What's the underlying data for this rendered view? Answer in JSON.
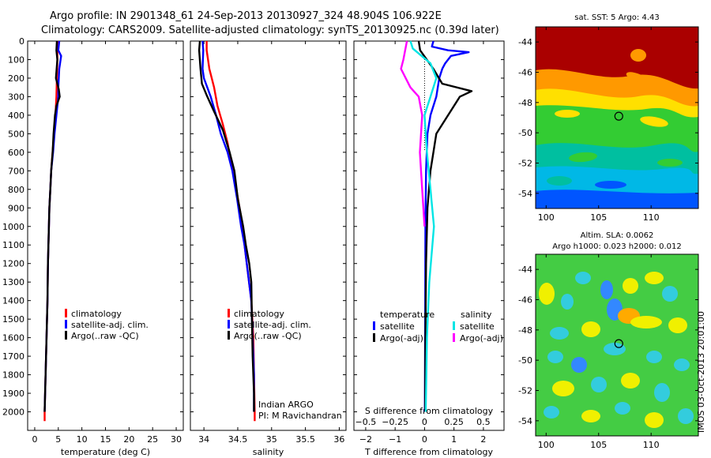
{
  "title_line1": "Argo profile: IN 2901348_61 24-Sep-2013 20130927_324 48.904S 106.922E",
  "title_line2": "Climatology: CARS2009. Satellite-adjusted climatology: synTS_20130925.nc (0.39d later)",
  "watermark": "IMOS 03-Oct-2013 20:01:00",
  "chart_data": [
    {
      "type": "line",
      "xlabel": "temperature (deg C)",
      "ylim": [
        2100,
        0
      ],
      "xlim": [
        -1.5,
        31.5
      ],
      "xticks": [
        0,
        5,
        10,
        15,
        20,
        25,
        30
      ],
      "xtick_labels": [
        "0",
        "5",
        "10",
        "15",
        "20",
        "25",
        "30"
      ],
      "yticks": [
        0,
        100,
        200,
        300,
        400,
        500,
        600,
        700,
        800,
        900,
        1000,
        1100,
        1200,
        1300,
        1400,
        1500,
        1600,
        1700,
        1800,
        1900,
        2000
      ],
      "ytick_labels": [
        "0",
        "100",
        "200",
        "300",
        "400",
        "500",
        "600",
        "700",
        "800",
        "900",
        "1000",
        "1100",
        "1200",
        "1300",
        "1400",
        "1500",
        "1600",
        "1700",
        "1800",
        "1900",
        "2000"
      ],
      "legend": [
        "climatology",
        "satellite-adj. clim.",
        "Argo(..raw -QC)"
      ],
      "series": [
        {
          "name": "climatology",
          "color": "#ff0000",
          "points": [
            [
              4.8,
              0
            ],
            [
              4.8,
              100
            ],
            [
              4.7,
              200
            ],
            [
              4.6,
              300
            ],
            [
              4.4,
              400
            ],
            [
              4.1,
              500
            ],
            [
              3.8,
              600
            ],
            [
              3.5,
              700
            ],
            [
              3.3,
              800
            ],
            [
              3.1,
              900
            ],
            [
              3.0,
              1000
            ],
            [
              2.8,
              1200
            ],
            [
              2.7,
              1400
            ],
            [
              2.5,
              1600
            ],
            [
              2.3,
              1800
            ],
            [
              2.2,
              1900
            ],
            [
              2.1,
              2000
            ],
            [
              2.1,
              2050
            ]
          ]
        },
        {
          "name": "satellite-adj. clim.",
          "color": "#0000ff",
          "points": [
            [
              5.2,
              0
            ],
            [
              5.0,
              50
            ],
            [
              5.6,
              80
            ],
            [
              5.2,
              150
            ],
            [
              5.0,
              250
            ],
            [
              5.0,
              300
            ],
            [
              4.6,
              400
            ],
            [
              4.2,
              500
            ],
            [
              3.9,
              600
            ],
            [
              3.5,
              700
            ],
            [
              3.3,
              800
            ],
            [
              3.1,
              900
            ],
            [
              3.0,
              1000
            ],
            [
              2.8,
              1200
            ],
            [
              2.7,
              1400
            ],
            [
              2.5,
              1600
            ],
            [
              2.3,
              1800
            ],
            [
              2.2,
              1900
            ],
            [
              2.1,
              2000
            ]
          ]
        },
        {
          "name": "Argo(..raw -QC)",
          "color": "#000000",
          "points": [
            [
              4.7,
              0
            ],
            [
              4.6,
              50
            ],
            [
              4.8,
              100
            ],
            [
              4.5,
              200
            ],
            [
              5.1,
              260
            ],
            [
              5.3,
              300
            ],
            [
              4.6,
              350
            ],
            [
              4.3,
              400
            ],
            [
              4.0,
              500
            ],
            [
              3.8,
              600
            ],
            [
              3.5,
              700
            ],
            [
              3.3,
              800
            ],
            [
              3.1,
              900
            ],
            [
              3.0,
              1000
            ],
            [
              2.8,
              1200
            ],
            [
              2.7,
              1400
            ],
            [
              2.5,
              1600
            ],
            [
              2.3,
              1800
            ],
            [
              2.2,
              1900
            ],
            [
              2.1,
              2000
            ]
          ]
        }
      ]
    },
    {
      "type": "line",
      "xlabel": "salinity",
      "ylim": [
        2100,
        0
      ],
      "xlim": [
        33.8,
        36.1
      ],
      "xticks": [
        34,
        34.5,
        35,
        35.5,
        36
      ],
      "xtick_labels": [
        "34",
        "34.5",
        "35",
        "35.5",
        "36"
      ],
      "legend": [
        "climatology",
        "satellite-adj. clim.",
        "Argo(..raw -QC)"
      ],
      "annotation_lines": [
        "Indian ARGO",
        "PI: M Ravichandran"
      ],
      "series": [
        {
          "name": "climatology",
          "color": "#ff0000",
          "points": [
            [
              34.04,
              0
            ],
            [
              34.04,
              50
            ],
            [
              34.08,
              150
            ],
            [
              34.15,
              250
            ],
            [
              34.2,
              350
            ],
            [
              34.28,
              450
            ],
            [
              34.35,
              550
            ],
            [
              34.4,
              650
            ],
            [
              34.48,
              800
            ],
            [
              34.55,
              950
            ],
            [
              34.6,
              1100
            ],
            [
              34.65,
              1250
            ],
            [
              34.7,
              1400
            ],
            [
              34.73,
              1600
            ],
            [
              34.74,
              1800
            ],
            [
              34.75,
              2000
            ],
            [
              34.75,
              2050
            ]
          ]
        },
        {
          "name": "satellite-adj. clim.",
          "color": "#0000ff",
          "points": [
            [
              33.98,
              0
            ],
            [
              33.99,
              50
            ],
            [
              33.98,
              150
            ],
            [
              34.0,
              200
            ],
            [
              34.1,
              300
            ],
            [
              34.18,
              400
            ],
            [
              34.25,
              500
            ],
            [
              34.35,
              600
            ],
            [
              34.42,
              700
            ],
            [
              34.49,
              850
            ],
            [
              34.55,
              1000
            ],
            [
              34.6,
              1100
            ],
            [
              34.65,
              1250
            ],
            [
              34.7,
              1400
            ],
            [
              34.72,
              1600
            ],
            [
              34.74,
              1800
            ],
            [
              34.74,
              2000
            ]
          ]
        },
        {
          "name": "Argo(..raw -QC)",
          "color": "#000000",
          "points": [
            [
              33.94,
              0
            ],
            [
              33.93,
              50
            ],
            [
              33.95,
              150
            ],
            [
              33.97,
              230
            ],
            [
              34.05,
              300
            ],
            [
              34.15,
              380
            ],
            [
              34.28,
              480
            ],
            [
              34.38,
              600
            ],
            [
              34.45,
              700
            ],
            [
              34.5,
              850
            ],
            [
              34.58,
              1000
            ],
            [
              34.62,
              1100
            ],
            [
              34.67,
              1200
            ],
            [
              34.7,
              1300
            ],
            [
              34.71,
              1500
            ],
            [
              34.72,
              1700
            ],
            [
              34.74,
              1900
            ],
            [
              34.74,
              2000
            ]
          ]
        }
      ]
    },
    {
      "type": "line",
      "xlabel": "T difference from climatology",
      "s_axis_label": "S difference from climatology",
      "ylim": [
        2100,
        0
      ],
      "xlim": [
        -2.4,
        2.7
      ],
      "xticks": [
        -2,
        -1,
        0,
        1,
        2
      ],
      "xtick_labels": [
        "−2",
        "−1",
        "0",
        "1",
        "2"
      ],
      "s_ticks": [
        -0.5,
        -0.25,
        0,
        0.25,
        0.5
      ],
      "s_tick_labels": [
        "−0.5",
        "−0.25",
        "0",
        "0.25",
        "0.5"
      ],
      "legend_temperature_title": "temperature",
      "legend_salinity_title": "salinity",
      "legend_temperature": [
        "satellite",
        "Argo(-adj)"
      ],
      "legend_salinity": [
        "satellite",
        "Argo(-adj)"
      ],
      "series": [
        {
          "name": "satellite",
          "group": "temperature",
          "color": "#0000ff",
          "points": [
            [
              0.3,
              0
            ],
            [
              0.25,
              30
            ],
            [
              0.8,
              50
            ],
            [
              1.5,
              60
            ],
            [
              0.9,
              80
            ],
            [
              0.7,
              120
            ],
            [
              0.6,
              150
            ],
            [
              0.5,
              200
            ],
            [
              0.4,
              300
            ],
            [
              0.2,
              400
            ],
            [
              0.1,
              500
            ],
            [
              0.05,
              700
            ],
            [
              0.03,
              1000
            ],
            [
              0.02,
              1500
            ],
            [
              0.01,
              2000
            ]
          ]
        },
        {
          "name": "Argo(-adj)",
          "group": "temperature",
          "color": "#000000",
          "points": [
            [
              -0.2,
              0
            ],
            [
              -0.15,
              50
            ],
            [
              0.3,
              150
            ],
            [
              0.6,
              230
            ],
            [
              1.6,
              270
            ],
            [
              1.2,
              300
            ],
            [
              0.8,
              400
            ],
            [
              0.4,
              500
            ],
            [
              0.3,
              600
            ],
            [
              0.2,
              700
            ],
            [
              0.1,
              900
            ],
            [
              0.05,
              1200
            ],
            [
              0.03,
              1600
            ],
            [
              0.02,
              2000
            ]
          ]
        },
        {
          "name": "satellite",
          "group": "salinity",
          "color": "#00e5e5",
          "points": [
            [
              -0.12,
              0
            ],
            [
              -0.1,
              40
            ],
            [
              0.05,
              120
            ],
            [
              0.1,
              200
            ],
            [
              0.05,
              300
            ],
            [
              0.0,
              400
            ],
            [
              0.02,
              600
            ],
            [
              0.05,
              800
            ],
            [
              0.08,
              1000
            ],
            [
              0.04,
              1300
            ],
            [
              0.02,
              1600
            ],
            [
              0.01,
              2000
            ]
          ]
        },
        {
          "name": "Argo(-adj)",
          "group": "salinity",
          "color": "#ff00ff",
          "points": [
            [
              -0.15,
              0
            ],
            [
              -0.18,
              100
            ],
            [
              -0.2,
              150
            ],
            [
              -0.12,
              250
            ],
            [
              -0.05,
              300
            ],
            [
              -0.02,
              400
            ],
            [
              -0.04,
              600
            ],
            [
              -0.02,
              800
            ],
            [
              0.0,
              1000
            ]
          ]
        }
      ]
    },
    {
      "type": "heatmap",
      "title": "sat. SST: 5 Argo: 4.43",
      "xlim": [
        99,
        114.5
      ],
      "ylim": [
        -55,
        -43
      ],
      "xticks": [
        100,
        105,
        110
      ],
      "xtick_labels": [
        "100",
        "105",
        "110"
      ],
      "yticks": [
        -54,
        -52,
        -50,
        -48,
        -46,
        -44
      ],
      "ytick_labels": [
        "-54",
        "-52",
        "-50",
        "-48",
        "-46",
        "-44"
      ],
      "marker": {
        "lon": 106.922,
        "lat": -48.904
      },
      "colors": {
        "warm": "#aa0000",
        "orange": "#ff9900",
        "yellow": "#ffe000",
        "green": "#33cc33",
        "teal": "#00bfa0",
        "cyan": "#00b8e6",
        "blue": "#0055ff"
      }
    },
    {
      "type": "heatmap",
      "title_line1": "Altim. SLA: 0.0062",
      "title_line2": "Argo h1000: 0.023 h2000: 0.012",
      "xlim": [
        99,
        114.5
      ],
      "ylim": [
        -55,
        -43
      ],
      "xticks": [
        100,
        105,
        110
      ],
      "xtick_labels": [
        "100",
        "105",
        "110"
      ],
      "yticks": [
        -54,
        -52,
        -50,
        -48,
        -46,
        -44
      ],
      "ytick_labels": [
        "-54",
        "-52",
        "-50",
        "-48",
        "-46",
        "-44"
      ],
      "marker": {
        "lon": 106.922,
        "lat": -48.904
      },
      "colors": {
        "base": "#44cc44",
        "yellow": "#f0f000",
        "cyan": "#33ccdd",
        "blue": "#3388ff",
        "orange": "#ffaa00"
      }
    }
  ]
}
